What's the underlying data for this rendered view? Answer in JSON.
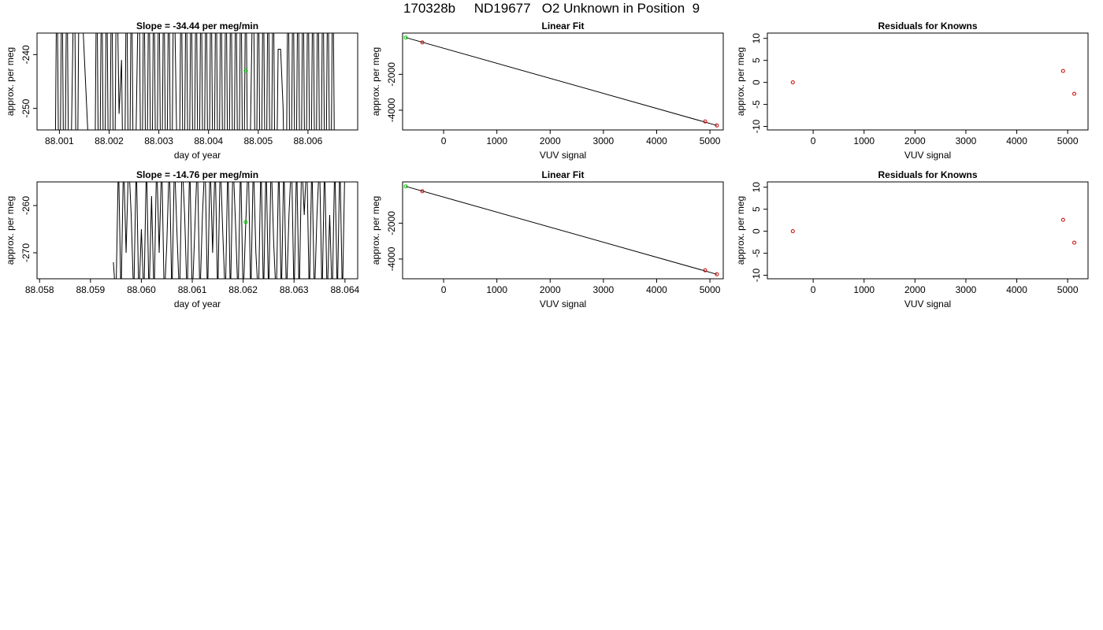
{
  "title": "170328b     ND19677   O2 Unknown in Position  9",
  "colors": {
    "axis": "#000000",
    "trace": "#000000",
    "standard": "#00cc00",
    "known": "#cc0000"
  },
  "chart_data": [
    {
      "type": "line",
      "title": "Slope =  -34.44  per meg/min",
      "xlabel": "day of year",
      "ylabel": "approx. per meg",
      "xlim": [
        88.00055,
        88.007
      ],
      "ylim": [
        -254.0,
        -236.0
      ],
      "xticks": [
        "88.001",
        "88.002",
        "88.003",
        "88.004",
        "88.005",
        "88.006"
      ],
      "yticks": [
        "-240",
        "-250"
      ],
      "series": [
        {
          "values_x": [
            88.0009,
            88.00095,
            88.001,
            88.00105,
            88.0011,
            88.00115,
            88.0012,
            88.0013,
            88.00135,
            88.0014,
            88.0017,
            88.00175,
            88.0018,
            88.00185,
            88.0019,
            88.00195,
            88.002,
            88.00205,
            88.0021,
            88.00215,
            88.0022,
            88.00225,
            88.0023,
            88.00235,
            88.0024,
            88.00245,
            88.0025,
            88.0026,
            88.00265,
            88.0027,
            88.00275,
            88.0028,
            88.00285,
            88.0029,
            88.00295,
            88.003,
            88.00305,
            88.0031,
            88.00315,
            88.0032,
            88.00325,
            88.0033,
            88.0034,
            88.00345,
            88.0035,
            88.00355,
            88.0036,
            88.00365,
            88.0037,
            88.00375,
            88.0038,
            88.00385,
            88.0039,
            88.00395,
            88.004,
            88.00405,
            88.0041,
            88.00415,
            88.0042,
            88.00425,
            88.0043,
            88.00435,
            88.0044,
            88.00445,
            88.0045,
            88.00455,
            88.0046,
            88.00465,
            88.0047,
            88.00475,
            88.0048,
            88.0049,
            88.00495,
            88.005,
            88.00505,
            88.0051,
            88.00515,
            88.0052,
            88.00525,
            88.0053,
            88.00535,
            88.0054,
            88.00545,
            88.0055,
            88.00555,
            88.0056,
            88.00565,
            88.0057,
            88.00575,
            88.0058,
            88.00585,
            88.0059,
            88.00595,
            88.006,
            88.00605,
            88.0061,
            88.00615,
            88.0062,
            88.00625,
            88.0063,
            88.00635,
            88.0064,
            88.00645,
            88.0065,
            88.00655
          ],
          "values_y": [
            -280,
            -220,
            -280,
            -220,
            -280,
            -220,
            -280,
            -220,
            -280,
            -220,
            -280,
            -220,
            -280,
            -220,
            -280,
            -220,
            -280,
            -220,
            -280,
            -220,
            -251,
            -241,
            -280,
            -220,
            -280,
            -220,
            -280,
            -220,
            -280,
            -220,
            -280,
            -220,
            -280,
            -220,
            -280,
            -220,
            -280,
            -220,
            -280,
            -220,
            -280,
            -220,
            -280,
            -220,
            -280,
            -220,
            -280,
            -220,
            -280,
            -220,
            -280,
            -220,
            -280,
            -220,
            -280,
            -220,
            -280,
            -220,
            -280,
            -220,
            -280,
            -220,
            -280,
            -220,
            -280,
            -220,
            -280,
            -220,
            -280,
            -220,
            -280,
            -220,
            -280,
            -220,
            -280,
            -220,
            -280,
            -220,
            -280,
            -220,
            -280,
            -239,
            -239,
            -250,
            -280,
            -220,
            -280,
            -220,
            -280,
            -220,
            -280,
            -220,
            -280,
            -220,
            -280,
            -220,
            -280,
            -220,
            -280,
            -220,
            -280,
            -220,
            -280,
            -220,
            -280
          ]
        }
      ],
      "points": [
        {
          "x": 88.00475,
          "y": -243.0,
          "role": "standard"
        }
      ]
    },
    {
      "type": "scatter",
      "title": "Linear Fit",
      "xlabel": "VUV signal",
      "ylabel": "approx. per meg",
      "xlim": [
        -770,
        5250
      ],
      "ylim": [
        -5100,
        300
      ],
      "xticks": [
        "0",
        "1000",
        "2000",
        "3000",
        "4000",
        "5000"
      ],
      "yticks": [
        "-2000",
        "-4000"
      ],
      "points": [
        {
          "x": -710,
          "y": 50,
          "role": "standard"
        },
        {
          "x": -400,
          "y": -220,
          "role": "known"
        },
        {
          "x": 4910,
          "y": -4630,
          "role": "known"
        },
        {
          "x": 5130,
          "y": -4850,
          "role": "known"
        }
      ],
      "fit_line": {
        "x": [
          -710,
          5130
        ],
        "y": [
          50,
          -4850
        ]
      }
    },
    {
      "type": "scatter",
      "title": "Residuals for Knowns",
      "xlabel": "VUV signal",
      "ylabel": "approx. per meg",
      "xlim": [
        -900,
        5400
      ],
      "ylim": [
        -10.8,
        11.2
      ],
      "xticks": [
        "0",
        "1000",
        "2000",
        "3000",
        "4000",
        "5000"
      ],
      "yticks": [
        "-10",
        "-5",
        "0",
        "5",
        "10"
      ],
      "points": [
        {
          "x": -400,
          "y": 0.0,
          "role": "known"
        },
        {
          "x": 4910,
          "y": 2.6,
          "role": "known"
        },
        {
          "x": 5130,
          "y": -2.6,
          "role": "known"
        }
      ]
    },
    {
      "type": "line",
      "title": "Slope =  -14.76  per meg/min",
      "xlabel": "day of year",
      "ylabel": "approx. per meg",
      "xlim": [
        88.05795,
        88.06425
      ],
      "ylim": [
        -275.5,
        -255.0
      ],
      "xticks": [
        "88.058",
        "88.059",
        "88.060",
        "88.061",
        "88.062",
        "88.063",
        "88.064"
      ],
      "yticks": [
        "-260",
        "-270"
      ],
      "series": [
        {
          "values_x": [
            88.05945,
            88.0595,
            88.05955,
            88.0596,
            88.05965,
            88.0597,
            88.05975,
            88.0598,
            88.05985,
            88.0599,
            88.05995,
            88.06,
            88.06005,
            88.0601,
            88.06015,
            88.0602,
            88.06025,
            88.0603,
            88.06035,
            88.0604,
            88.06045,
            88.0605,
            88.06055,
            88.0606,
            88.06065,
            88.0607,
            88.06075,
            88.0608,
            88.06085,
            88.0609,
            88.06095,
            88.061,
            88.06105,
            88.0611,
            88.06115,
            88.0612,
            88.06125,
            88.0613,
            88.06135,
            88.0614,
            88.06145,
            88.0615,
            88.06155,
            88.0616,
            88.06165,
            88.0617,
            88.06175,
            88.0618,
            88.06185,
            88.0619,
            88.06195,
            88.062,
            88.06205,
            88.0621,
            88.06215,
            88.0622,
            88.06225,
            88.0623,
            88.06235,
            88.0624,
            88.06245,
            88.0625,
            88.06255,
            88.0626,
            88.06265,
            88.0627,
            88.06275,
            88.0628,
            88.06285,
            88.0629,
            88.06295,
            88.063,
            88.06305,
            88.0631,
            88.06315,
            88.0632,
            88.06325,
            88.0633,
            88.06335,
            88.0634,
            88.06345,
            88.0635,
            88.06355,
            88.0636,
            88.06365,
            88.0637,
            88.06375,
            88.0638,
            88.06385,
            88.0639,
            88.06395,
            88.064
          ],
          "values_y": [
            -272,
            -280,
            -250,
            -280,
            -250,
            -270,
            -250,
            -262,
            -280,
            -250,
            -280,
            -265,
            -280,
            -250,
            -280,
            -258,
            -280,
            -250,
            -270,
            -250,
            -280,
            -268,
            -250,
            -280,
            -250,
            -266,
            -280,
            -250,
            -262,
            -280,
            -250,
            -280,
            -265,
            -250,
            -280,
            -262,
            -250,
            -280,
            -250,
            -270,
            -250,
            -280,
            -250,
            -266,
            -280,
            -250,
            -280,
            -250,
            -264,
            -280,
            -250,
            -280,
            -264,
            -250,
            -280,
            -250,
            -270,
            -280,
            -250,
            -280,
            -250,
            -280,
            -250,
            -268,
            -280,
            -250,
            -280,
            -250,
            -280,
            -262,
            -250,
            -280,
            -250,
            -280,
            -250,
            -262,
            -250,
            -280,
            -250,
            -280,
            -262,
            -250,
            -280,
            -250,
            -280,
            -262,
            -280,
            -250,
            -280,
            -250,
            -280,
            -250
          ]
        }
      ],
      "points": [
        {
          "x": 88.06205,
          "y": -263.5,
          "role": "standard"
        }
      ]
    },
    {
      "type": "scatter",
      "title": "Linear Fit",
      "xlabel": "VUV signal",
      "ylabel": "approx. per meg",
      "xlim": [
        -770,
        5250
      ],
      "ylim": [
        -5100,
        300
      ],
      "xticks": [
        "0",
        "1000",
        "2000",
        "3000",
        "4000",
        "5000"
      ],
      "yticks": [
        "-2000",
        "-4000"
      ],
      "points": [
        {
          "x": -710,
          "y": 50,
          "role": "standard"
        },
        {
          "x": -400,
          "y": -220,
          "role": "known"
        },
        {
          "x": 4910,
          "y": -4630,
          "role": "known"
        },
        {
          "x": 5130,
          "y": -4850,
          "role": "known"
        }
      ],
      "fit_line": {
        "x": [
          -710,
          5130
        ],
        "y": [
          50,
          -4850
        ]
      }
    },
    {
      "type": "scatter",
      "title": "Residuals for Knowns",
      "xlabel": "VUV signal",
      "ylabel": "approx. per meg",
      "xlim": [
        -900,
        5400
      ],
      "ylim": [
        -10.8,
        11.2
      ],
      "xticks": [
        "0",
        "1000",
        "2000",
        "3000",
        "4000",
        "5000"
      ],
      "yticks": [
        "-10",
        "-5",
        "0",
        "5",
        "10"
      ],
      "points": [
        {
          "x": -400,
          "y": 0.0,
          "role": "known"
        },
        {
          "x": 4910,
          "y": 2.6,
          "role": "known"
        },
        {
          "x": 5130,
          "y": -2.6,
          "role": "known"
        }
      ]
    }
  ]
}
